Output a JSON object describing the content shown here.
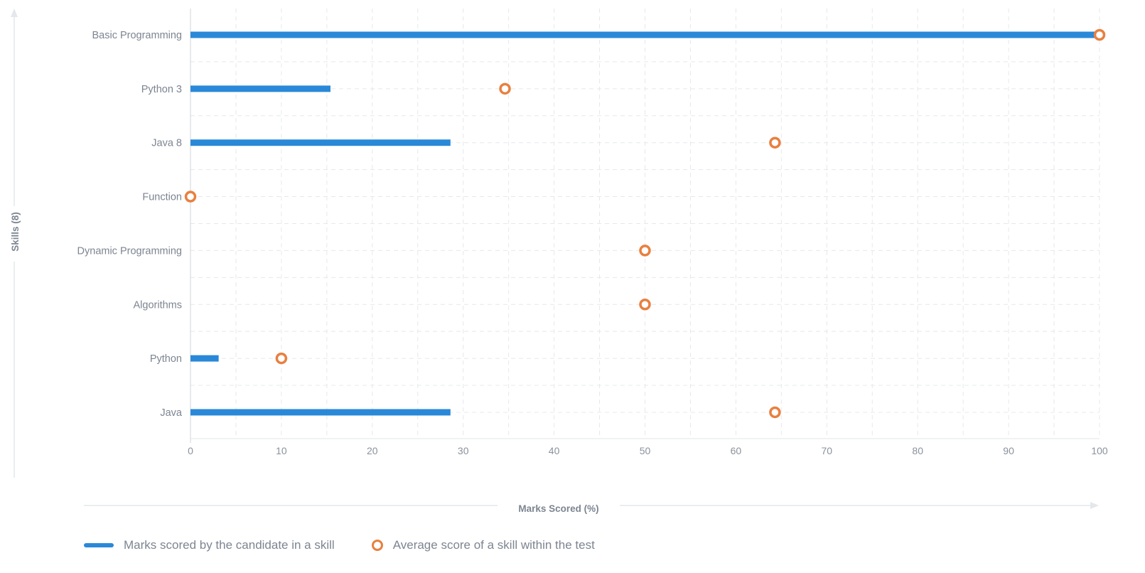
{
  "chart_data": {
    "type": "bar",
    "orientation": "horizontal",
    "categories": [
      "Basic Programming",
      "Python 3",
      "Java 8",
      "Function",
      "Dynamic Programming",
      "Algorithms",
      "Python",
      "Java"
    ],
    "series": [
      {
        "name": "Marks scored by the candidate in a skill",
        "kind": "bar",
        "color": "#2a88d8",
        "values": [
          100,
          15.4,
          28.6,
          0,
          0,
          0,
          3.1,
          28.6
        ]
      },
      {
        "name": "Average score of a skill within the test",
        "kind": "marker",
        "color": "#e8803f",
        "values": [
          100,
          34.6,
          64.3,
          0,
          50,
          50,
          10,
          64.3
        ]
      }
    ],
    "xlabel": "Marks Scored (%)",
    "ylabel": "Skills (8)",
    "xlim": [
      0,
      100
    ],
    "xticks": [
      "0",
      "10",
      "20",
      "30",
      "40",
      "50",
      "60",
      "70",
      "80",
      "90",
      "100"
    ],
    "grid": true,
    "legend_position": "bottom-left"
  }
}
